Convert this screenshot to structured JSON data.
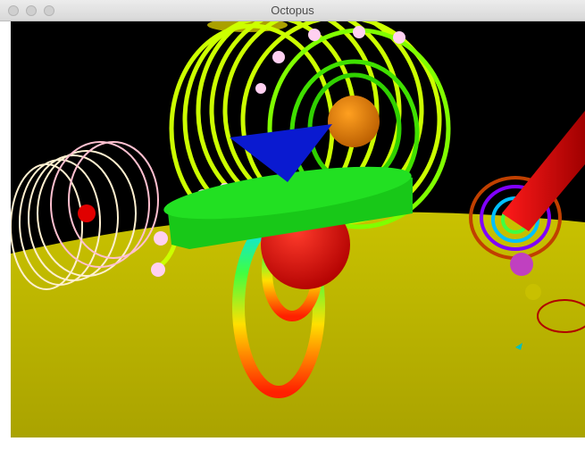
{
  "window": {
    "title": "Octopus"
  }
}
